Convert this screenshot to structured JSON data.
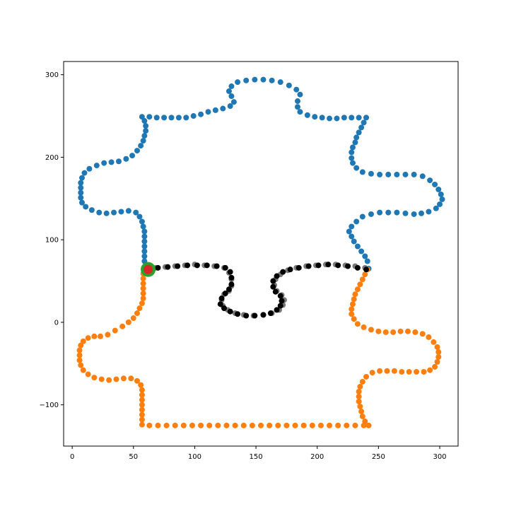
{
  "chart_data": {
    "type": "scatter",
    "title": "",
    "xlabel": "",
    "ylabel": "",
    "xlim": [
      -7,
      315
    ],
    "ylim": [
      -150,
      316
    ],
    "xticks": [
      0,
      50,
      100,
      150,
      200,
      250,
      300
    ],
    "yticks": [
      -100,
      0,
      100,
      200,
      300
    ],
    "xtick_labels": [
      "0",
      "50",
      "100",
      "150",
      "200",
      "250",
      "300"
    ],
    "ytick_labels": [
      "−100",
      "0",
      "100",
      "200",
      "300"
    ],
    "grid": false,
    "legend": "none",
    "series": [
      {
        "color": "#1f77b4",
        "points": [
          [
            242,
            65
          ],
          [
            241,
            74
          ],
          [
            239,
            80
          ],
          [
            236,
            86
          ],
          [
            233,
            92
          ],
          [
            230,
            98
          ],
          [
            228,
            104
          ],
          [
            226,
            110
          ],
          [
            228,
            116
          ],
          [
            232,
            122
          ],
          [
            237,
            128
          ],
          [
            244,
            131
          ],
          [
            251,
            133
          ],
          [
            258,
            133
          ],
          [
            265,
            133
          ],
          [
            272,
            132
          ],
          [
            279,
            131
          ],
          [
            285,
            132
          ],
          [
            291,
            134
          ],
          [
            297,
            138
          ],
          [
            300,
            143
          ],
          [
            302,
            149
          ],
          [
            301,
            155
          ],
          [
            299,
            161
          ],
          [
            296,
            167
          ],
          [
            292,
            172
          ],
          [
            286,
            177
          ],
          [
            279,
            179
          ],
          [
            272,
            179
          ],
          [
            265,
            179
          ],
          [
            258,
            179
          ],
          [
            251,
            179
          ],
          [
            244,
            180
          ],
          [
            237,
            182
          ],
          [
            232,
            187
          ],
          [
            229,
            193
          ],
          [
            228,
            199
          ],
          [
            228,
            206
          ],
          [
            229,
            212
          ],
          [
            231,
            218
          ],
          [
            232,
            224
          ],
          [
            234,
            230
          ],
          [
            236,
            236
          ],
          [
            238,
            242
          ],
          [
            240,
            248
          ],
          [
            234,
            248
          ],
          [
            228,
            248
          ],
          [
            222,
            248
          ],
          [
            216,
            247
          ],
          [
            210,
            247
          ],
          [
            204,
            248
          ],
          [
            198,
            249
          ],
          [
            192,
            251
          ],
          [
            186,
            255
          ],
          [
            184,
            261
          ],
          [
            184,
            268
          ],
          [
            186,
            276
          ],
          [
            183,
            282
          ],
          [
            177,
            287
          ],
          [
            170,
            291
          ],
          [
            163,
            293
          ],
          [
            156,
            294
          ],
          [
            149,
            294
          ],
          [
            142,
            293
          ],
          [
            135,
            291
          ],
          [
            130,
            286
          ],
          [
            128,
            280
          ],
          [
            130,
            274
          ],
          [
            132,
            267
          ],
          [
            129,
            262
          ],
          [
            123,
            259
          ],
          [
            117,
            257
          ],
          [
            111,
            255
          ],
          [
            105,
            252
          ],
          [
            99,
            250
          ],
          [
            93,
            248
          ],
          [
            87,
            248
          ],
          [
            81,
            248
          ],
          [
            75,
            248
          ],
          [
            69,
            248
          ],
          [
            63,
            249
          ],
          [
            57,
            249
          ],
          [
            59,
            244
          ],
          [
            60,
            238
          ],
          [
            60,
            232
          ],
          [
            59,
            226
          ],
          [
            58,
            220
          ],
          [
            56,
            214
          ],
          [
            53,
            208
          ],
          [
            49,
            202
          ],
          [
            44,
            198
          ],
          [
            38,
            195
          ],
          [
            32,
            194
          ],
          [
            26,
            193
          ],
          [
            20,
            190
          ],
          [
            14,
            186
          ],
          [
            10,
            181
          ],
          [
            8,
            175
          ],
          [
            7,
            169
          ],
          [
            7,
            163
          ],
          [
            7,
            157
          ],
          [
            7,
            151
          ],
          [
            8,
            145
          ],
          [
            11,
            140
          ],
          [
            16,
            136
          ],
          [
            22,
            133
          ],
          [
            28,
            132
          ],
          [
            34,
            133
          ],
          [
            40,
            134
          ],
          [
            46,
            135
          ],
          [
            52,
            133
          ],
          [
            55,
            128
          ],
          [
            57,
            122
          ],
          [
            58,
            116
          ],
          [
            59,
            110
          ],
          [
            59,
            104
          ],
          [
            59,
            98
          ],
          [
            59,
            92
          ],
          [
            59,
            86
          ],
          [
            59,
            80
          ],
          [
            59,
            74
          ],
          [
            60,
            68
          ]
        ]
      },
      {
        "color": "#ff7f0e",
        "points": [
          [
            59,
            65
          ],
          [
            58,
            59
          ],
          [
            58,
            53
          ],
          [
            58,
            47
          ],
          [
            58,
            41
          ],
          [
            58,
            35
          ],
          [
            58,
            29
          ],
          [
            57,
            23
          ],
          [
            55,
            17
          ],
          [
            53,
            11
          ],
          [
            50,
            5
          ],
          [
            46,
            0
          ],
          [
            41,
            -5
          ],
          [
            35,
            -10
          ],
          [
            29,
            -15
          ],
          [
            23,
            -17
          ],
          [
            18,
            -17
          ],
          [
            13,
            -19
          ],
          [
            9,
            -23
          ],
          [
            7,
            -28
          ],
          [
            6,
            -34
          ],
          [
            6,
            -40
          ],
          [
            6,
            -46
          ],
          [
            7,
            -52
          ],
          [
            9,
            -58
          ],
          [
            13,
            -63
          ],
          [
            18,
            -67
          ],
          [
            24,
            -69
          ],
          [
            30,
            -70
          ],
          [
            36,
            -69
          ],
          [
            42,
            -68
          ],
          [
            48,
            -68
          ],
          [
            53,
            -71
          ],
          [
            56,
            -76
          ],
          [
            57,
            -82
          ],
          [
            57,
            -88
          ],
          [
            57,
            -94
          ],
          [
            57,
            -100
          ],
          [
            57,
            -106
          ],
          [
            57,
            -112
          ],
          [
            57,
            -118
          ],
          [
            57,
            -124
          ],
          [
            63,
            -125
          ],
          [
            70,
            -125
          ],
          [
            77,
            -125
          ],
          [
            84,
            -125
          ],
          [
            91,
            -125
          ],
          [
            98,
            -125
          ],
          [
            105,
            -125
          ],
          [
            112,
            -125
          ],
          [
            119,
            -125
          ],
          [
            126,
            -125
          ],
          [
            133,
            -125
          ],
          [
            140,
            -125
          ],
          [
            147,
            -125
          ],
          [
            154,
            -125
          ],
          [
            161,
            -125
          ],
          [
            168,
            -125
          ],
          [
            175,
            -125
          ],
          [
            182,
            -125
          ],
          [
            189,
            -125
          ],
          [
            196,
            -125
          ],
          [
            203,
            -125
          ],
          [
            210,
            -125
          ],
          [
            217,
            -125
          ],
          [
            224,
            -125
          ],
          [
            231,
            -125
          ],
          [
            238,
            -125
          ],
          [
            242,
            -125
          ],
          [
            239,
            -120
          ],
          [
            237,
            -114
          ],
          [
            236,
            -108
          ],
          [
            235,
            -102
          ],
          [
            234,
            -96
          ],
          [
            234,
            -90
          ],
          [
            234,
            -84
          ],
          [
            235,
            -78
          ],
          [
            237,
            -72
          ],
          [
            240,
            -66
          ],
          [
            245,
            -61
          ],
          [
            251,
            -59
          ],
          [
            257,
            -59
          ],
          [
            263,
            -59
          ],
          [
            269,
            -60
          ],
          [
            275,
            -60
          ],
          [
            281,
            -60
          ],
          [
            287,
            -60
          ],
          [
            292,
            -58
          ],
          [
            296,
            -54
          ],
          [
            298,
            -48
          ],
          [
            299,
            -42
          ],
          [
            299,
            -36
          ],
          [
            298,
            -30
          ],
          [
            295,
            -24
          ],
          [
            291,
            -18
          ],
          [
            286,
            -14
          ],
          [
            280,
            -12
          ],
          [
            274,
            -11
          ],
          [
            268,
            -11
          ],
          [
            262,
            -12
          ],
          [
            256,
            -12
          ],
          [
            250,
            -11
          ],
          [
            244,
            -9
          ],
          [
            238,
            -6
          ],
          [
            233,
            -2
          ],
          [
            230,
            4
          ],
          [
            228,
            10
          ],
          [
            228,
            16
          ],
          [
            229,
            22
          ],
          [
            230,
            28
          ],
          [
            231,
            34
          ],
          [
            233,
            40
          ],
          [
            235,
            46
          ],
          [
            237,
            52
          ],
          [
            239,
            58
          ],
          [
            241,
            64
          ]
        ]
      },
      {
        "color": "#7a7a7a",
        "points": [
          [
            68,
            66
          ],
          [
            76,
            67
          ],
          [
            84,
            68
          ],
          [
            92,
            69
          ],
          [
            100,
            70
          ],
          [
            108,
            69
          ],
          [
            116,
            68
          ],
          [
            124,
            66
          ],
          [
            128,
            60
          ],
          [
            130,
            52
          ],
          [
            130,
            44
          ],
          [
            128,
            38
          ],
          [
            124,
            34
          ],
          [
            122,
            27
          ],
          [
            123,
            20
          ],
          [
            127,
            15
          ],
          [
            133,
            11
          ],
          [
            140,
            9
          ],
          [
            148,
            8
          ],
          [
            156,
            9
          ],
          [
            163,
            11
          ],
          [
            169,
            15
          ],
          [
            172,
            21
          ],
          [
            173,
            27
          ],
          [
            171,
            33
          ],
          [
            167,
            38
          ],
          [
            165,
            45
          ],
          [
            166,
            52
          ],
          [
            170,
            58
          ],
          [
            176,
            63
          ],
          [
            183,
            66
          ],
          [
            191,
            68
          ],
          [
            199,
            69
          ],
          [
            207,
            70
          ],
          [
            215,
            70
          ],
          [
            223,
            69
          ],
          [
            231,
            68
          ],
          [
            239,
            66
          ]
        ]
      },
      {
        "color": "#000000",
        "points": [
          [
            62,
            64
          ],
          [
            70,
            66
          ],
          [
            78,
            67
          ],
          [
            86,
            68
          ],
          [
            94,
            69
          ],
          [
            102,
            69
          ],
          [
            110,
            69
          ],
          [
            118,
            68
          ],
          [
            125,
            66
          ],
          [
            129,
            61
          ],
          [
            130,
            54
          ],
          [
            130,
            46
          ],
          [
            128,
            40
          ],
          [
            125,
            35
          ],
          [
            122,
            29
          ],
          [
            121,
            22
          ],
          [
            124,
            17
          ],
          [
            129,
            13
          ],
          [
            135,
            10
          ],
          [
            142,
            8
          ],
          [
            149,
            8
          ],
          [
            156,
            9
          ],
          [
            162,
            11
          ],
          [
            167,
            15
          ],
          [
            170,
            20
          ],
          [
            171,
            26
          ],
          [
            170,
            32
          ],
          [
            166,
            37
          ],
          [
            164,
            43
          ],
          [
            164,
            50
          ],
          [
            167,
            56
          ],
          [
            172,
            61
          ],
          [
            178,
            64
          ],
          [
            185,
            66
          ],
          [
            193,
            68
          ],
          [
            201,
            69
          ],
          [
            209,
            70
          ],
          [
            217,
            69
          ],
          [
            225,
            68
          ],
          [
            233,
            66
          ],
          [
            240,
            64
          ]
        ]
      }
    ],
    "markers": [
      {
        "x": 62,
        "y": 64,
        "color": "#2ca02c",
        "role": "ring"
      },
      {
        "x": 62,
        "y": 64,
        "color": "#d62728",
        "role": "center"
      }
    ]
  }
}
